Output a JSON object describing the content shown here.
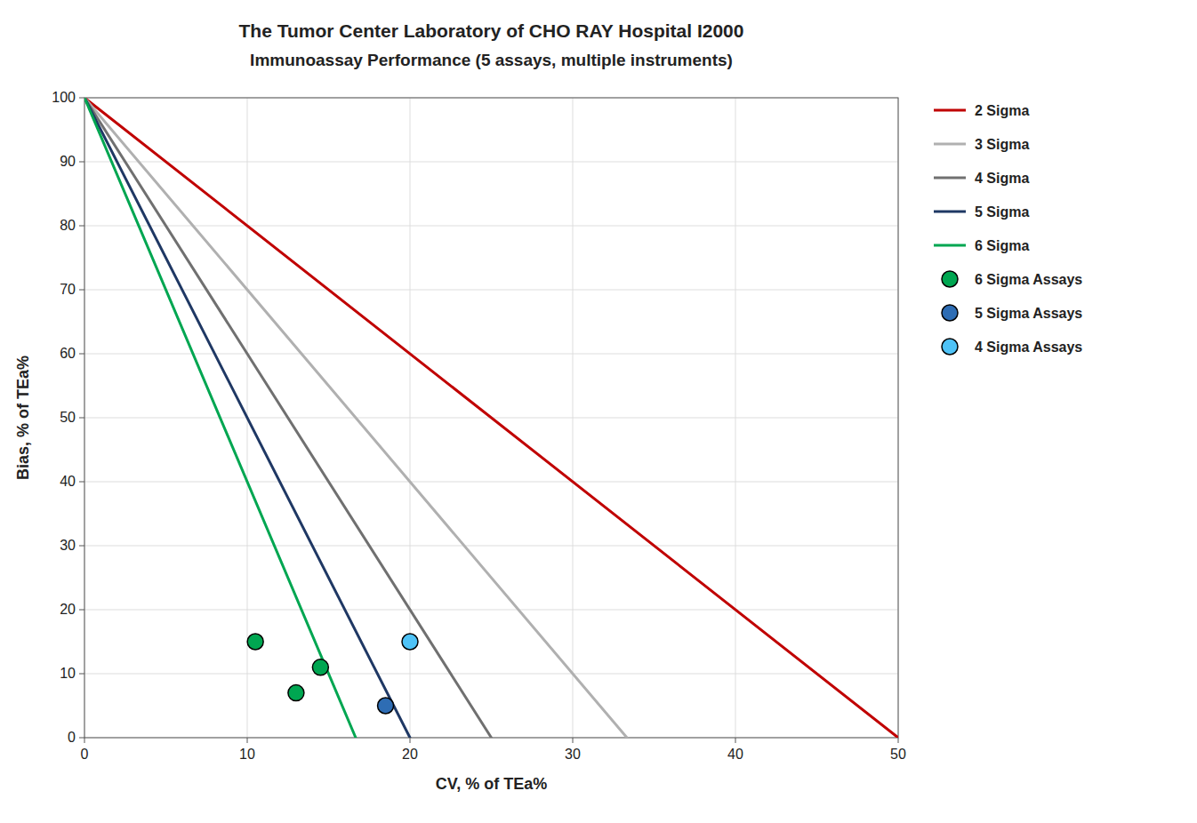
{
  "chart_data": {
    "type": "scatter",
    "title": "The Tumor Center Laboratory of CHO RAY Hospital I2000",
    "subtitle": "Immunoassay Performance  (5 assays, multiple instruments)",
    "x_label": "CV, % of TEa%",
    "y_label": "Bias, % of TEa%",
    "xlim": [
      0,
      50
    ],
    "ylim": [
      0,
      100
    ],
    "xticks": [
      0,
      10,
      20,
      30,
      40,
      50
    ],
    "yticks": [
      0,
      10,
      20,
      30,
      40,
      50,
      60,
      70,
      80,
      90,
      100
    ],
    "grid": true,
    "legend": "right",
    "series": [
      {
        "name": "2 Sigma",
        "type": "line",
        "color": "#C00000",
        "x": [
          0,
          50
        ],
        "values": [
          100,
          0
        ]
      },
      {
        "name": "3 Sigma",
        "type": "line",
        "color": "#B0B0B0",
        "x": [
          0,
          33.333333333333336
        ],
        "values": [
          100,
          0
        ]
      },
      {
        "name": "4 Sigma",
        "type": "line",
        "color": "#707070",
        "x": [
          0,
          25
        ],
        "values": [
          100,
          0
        ]
      },
      {
        "name": "5 Sigma",
        "type": "line",
        "color": "#1F3864",
        "x": [
          0,
          20
        ],
        "values": [
          100,
          0
        ]
      },
      {
        "name": "6 Sigma",
        "type": "line",
        "color": "#00A651",
        "x": [
          0,
          16.666666666666668
        ],
        "values": [
          100,
          0
        ]
      },
      {
        "name": "6 Sigma Assays",
        "type": "scatter",
        "color": "#00A651",
        "x": [
          10.5,
          13.0,
          14.5
        ],
        "values": [
          15,
          7,
          11
        ]
      },
      {
        "name": "5 Sigma Assays",
        "type": "scatter",
        "color": "#2E6DB4",
        "x": [
          18.5
        ],
        "values": [
          5
        ]
      },
      {
        "name": "4 Sigma Assays",
        "type": "scatter",
        "color": "#4FC3F7",
        "x": [
          20.0
        ],
        "values": [
          15
        ]
      }
    ]
  }
}
